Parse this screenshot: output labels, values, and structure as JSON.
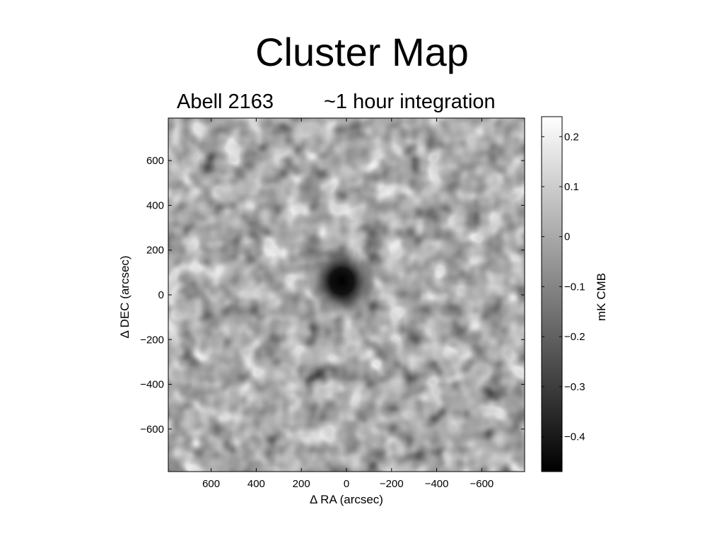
{
  "slide": {
    "title": "Cluster Map"
  },
  "chart_data": {
    "type": "heatmap",
    "title": "Abell 2163",
    "subtitle": "~1 hour integration",
    "xlabel": "Δ RA (arcsec)",
    "ylabel": "Δ DEC (arcsec)",
    "xlim": [
      790,
      -790
    ],
    "ylim": [
      -790,
      790
    ],
    "x_ticks": [
      600,
      400,
      200,
      0,
      -200,
      -400,
      -600
    ],
    "y_ticks": [
      600,
      400,
      200,
      0,
      -200,
      -400,
      -600
    ],
    "x_tick_labels": [
      "600",
      "400",
      "200",
      "0",
      "−200",
      "−400",
      "−600"
    ],
    "y_tick_labels": [
      "600",
      "400",
      "200",
      "0",
      "−200",
      "−400",
      "−600"
    ],
    "colormap": "gray",
    "colorbar": {
      "label": "mK CMB",
      "range": [
        -0.47,
        0.24
      ],
      "ticks": [
        0.2,
        0.1,
        0,
        -0.1,
        -0.2,
        -0.3,
        -0.4
      ],
      "tick_labels": [
        "0.2",
        "0.1",
        "0",
        "−0.1",
        "−0.2",
        "−0.3",
        "−0.4"
      ]
    },
    "features": [
      {
        "name": "cluster decrement",
        "x": 20,
        "y": 60,
        "value": -0.47
      }
    ],
    "grid": false
  }
}
